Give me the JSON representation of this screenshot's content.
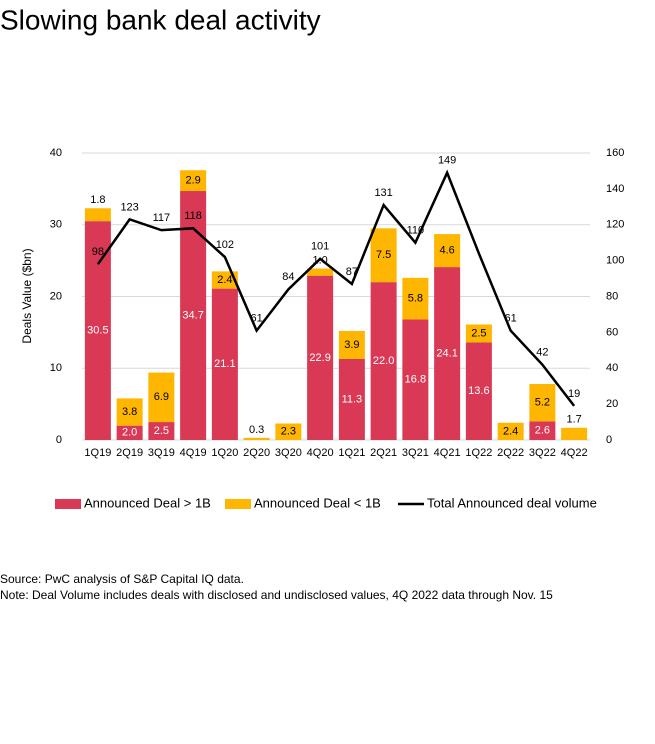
{
  "chart_data": {
    "type": "bar",
    "stacked": true,
    "title": "Slowing bank deal activity",
    "y_label": "Deals Value ($bn)",
    "categories": [
      "1Q19",
      "2Q19",
      "3Q19",
      "4Q19",
      "1Q20",
      "2Q20",
      "3Q20",
      "4Q20",
      "1Q21",
      "2Q21",
      "3Q21",
      "4Q21",
      "1Q22",
      "2Q22",
      "3Q22",
      "4Q22"
    ],
    "series": [
      {
        "name": "Announced Deal > 1B",
        "type": "bar",
        "color": "#d93954",
        "values": [
          30.5,
          2.0,
          2.5,
          34.7,
          21.1,
          null,
          null,
          22.9,
          11.3,
          22.0,
          16.8,
          24.1,
          13.6,
          null,
          2.6,
          null
        ],
        "value_labels": [
          "30.5",
          "2.0",
          "2.5",
          "34.7",
          "21.1",
          null,
          null,
          "22.9",
          "11.3",
          "22.0",
          "16.8",
          "24.1",
          "13.6",
          null,
          "2.6",
          null
        ]
      },
      {
        "name": "Announced Deal < 1B",
        "type": "bar",
        "color": "#ffb600",
        "values": [
          1.8,
          3.8,
          6.9,
          2.9,
          2.4,
          0.3,
          2.3,
          1.0,
          3.9,
          7.5,
          5.8,
          4.6,
          2.5,
          2.4,
          5.2,
          1.7
        ],
        "value_labels": [
          "1.8",
          "3.8",
          "6.9",
          "2.9",
          "2.4",
          "0.3",
          "2.3",
          "1.0",
          "3.9",
          "7.5",
          "5.8",
          "4.6",
          "2.5",
          "2.4",
          "5.2",
          "1.7"
        ]
      },
      {
        "name": "Total Announced deal volume",
        "type": "line",
        "axis": "y2",
        "color": "#000000",
        "values": [
          98,
          123,
          117,
          118,
          102,
          61,
          84,
          101,
          87,
          131,
          110,
          149,
          104,
          61,
          42,
          19
        ],
        "value_labels": [
          "98",
          "123",
          "117",
          "118",
          "102",
          "61",
          "84",
          "101",
          "87",
          "131",
          "110",
          "149",
          null,
          "61",
          "42",
          "19"
        ]
      }
    ],
    "ylim": [
      0,
      40
    ],
    "yticks": [
      0,
      10,
      20,
      30,
      40
    ],
    "y2lim": [
      0,
      160
    ],
    "y2ticks": [
      0,
      20,
      40,
      60,
      80,
      100,
      120,
      140,
      160
    ],
    "grid": true,
    "legend": "bottom",
    "notes": [
      "Source: PwC analysis of S&P Capital IQ data.",
      "Note: Deal Volume includes deals with disclosed and undisclosed values, 4Q 2022 data through Nov. 15"
    ]
  }
}
